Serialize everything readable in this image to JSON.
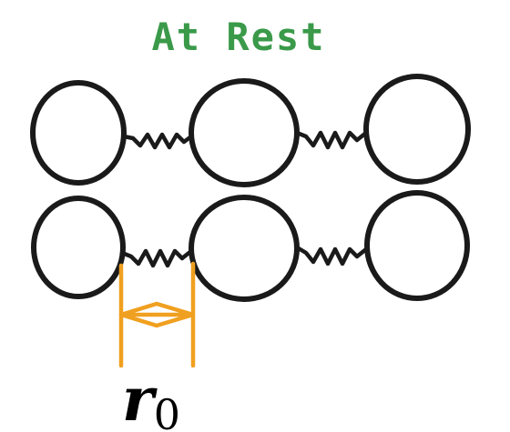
{
  "diagram": {
    "title": "At Rest",
    "title_color": "#3a9a4a",
    "marker_color": "#f0a020",
    "ink_color": "#1a1a1a",
    "label": {
      "symbol": "r",
      "subscript": "0"
    },
    "rows": [
      {
        "name": "row-1",
        "atoms": 3,
        "springs": 2
      },
      {
        "name": "row-2",
        "atoms": 3,
        "springs": 2
      }
    ]
  }
}
